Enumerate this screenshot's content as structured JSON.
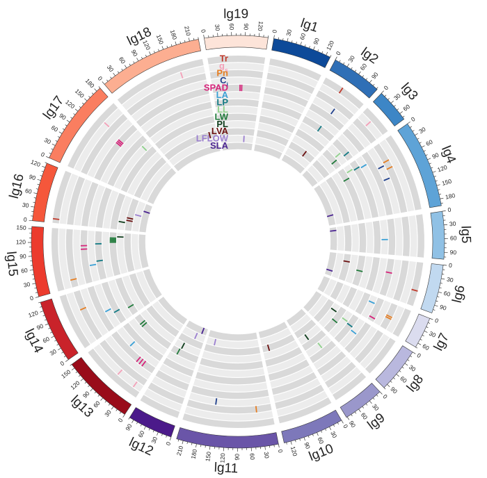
{
  "linkage_groups": [
    {
      "name": "lg1",
      "length": 130,
      "ticks": [
        0,
        30,
        60,
        90,
        120
      ],
      "color": "#0d4a99"
    },
    {
      "name": "lg2",
      "length": 112,
      "ticks": [
        0,
        30,
        60,
        90
      ],
      "color": "#2f6fb6"
    },
    {
      "name": "lg3",
      "length": 75,
      "ticks": [
        0,
        30,
        60
      ],
      "color": "#3d86c6"
    },
    {
      "name": "lg4",
      "length": 195,
      "ticks": [
        0,
        30,
        60,
        90,
        120,
        150,
        180
      ],
      "color": "#5ea3d7"
    },
    {
      "name": "lg5",
      "length": 105,
      "ticks": [
        0,
        30,
        60,
        90
      ],
      "color": "#90c1e5"
    },
    {
      "name": "lg6",
      "length": 108,
      "ticks": [
        0,
        30,
        60,
        90
      ],
      "color": "#c1d9f0"
    },
    {
      "name": "lg7",
      "length": 70,
      "ticks": [
        0,
        30,
        60
      ],
      "color": "#dbdcef"
    },
    {
      "name": "lg8",
      "length": 100,
      "ticks": [
        0,
        30,
        60,
        90
      ],
      "color": "#b9b8de"
    },
    {
      "name": "lg9",
      "length": 92,
      "ticks": [
        0,
        30,
        60,
        90
      ],
      "color": "#9a97cb"
    },
    {
      "name": "lg10",
      "length": 135,
      "ticks": [
        0,
        30,
        60,
        90,
        120
      ],
      "color": "#7d78ba"
    },
    {
      "name": "lg11",
      "length": 225,
      "ticks": [
        0,
        30,
        60,
        90,
        120,
        150,
        180,
        210
      ],
      "color": "#6a55a8"
    },
    {
      "name": "lg12",
      "length": 100,
      "ticks": [
        0,
        30,
        60,
        90
      ],
      "color": "#4b1a8a"
    },
    {
      "name": "lg13",
      "length": 160,
      "ticks": [
        0,
        30,
        60,
        90,
        120,
        150
      ],
      "color": "#990c1a"
    },
    {
      "name": "lg14",
      "length": 140,
      "ticks": [
        0,
        30,
        60,
        90,
        120
      ],
      "color": "#c9232a"
    },
    {
      "name": "lg15",
      "length": 155,
      "ticks": [
        0,
        30,
        60,
        90,
        120,
        150
      ],
      "color": "#ec3b2d"
    },
    {
      "name": "lg16",
      "length": 130,
      "ticks": [
        0,
        30,
        60,
        90,
        120
      ],
      "color": "#f5573b"
    },
    {
      "name": "lg17",
      "length": 190,
      "ticks": [
        0,
        30,
        60,
        90,
        120,
        150,
        180
      ],
      "color": "#fa7e60"
    },
    {
      "name": "lg18",
      "length": 230,
      "ticks": [
        0,
        30,
        60,
        90,
        120,
        150,
        180,
        210
      ],
      "color": "#fcae91"
    },
    {
      "name": "lg19",
      "length": 140,
      "ticks": [
        0,
        30,
        60,
        90,
        120
      ],
      "color": "#fde4d9"
    }
  ],
  "traits": [
    {
      "label": "Tr",
      "sub": "",
      "color": "#c0392b"
    },
    {
      "label": "g",
      "sub": "s",
      "color": "#f4a0b8"
    },
    {
      "label": "Pn",
      "sub": "",
      "color": "#e67e22"
    },
    {
      "label": "C",
      "sub": "i",
      "color": "#1f3f8c"
    },
    {
      "label": "SPAD",
      "sub": "",
      "color": "#d6247a"
    },
    {
      "label": "LA",
      "sub": "",
      "color": "#3aa0d6"
    },
    {
      "label": "LP",
      "sub": "",
      "color": "#137a84"
    },
    {
      "label": "LL",
      "sub": "",
      "color": "#8fd18b"
    },
    {
      "label": "LW",
      "sub": "",
      "color": "#1f7a3a"
    },
    {
      "label": "PL",
      "sub": "",
      "color": "#0f3d1c"
    },
    {
      "label": "LVA",
      "sub": "",
      "color": "#6b1010"
    },
    {
      "label": "LFLOW",
      "sub": "",
      "color": "#9b7fd0"
    },
    {
      "label": "SLA",
      "sub": "",
      "color": "#4b2591"
    }
  ],
  "qtl_marks": [
    {
      "lg": 2,
      "pos": 48,
      "trait": 0
    },
    {
      "lg": 2,
      "pos": 62,
      "trait": 3
    },
    {
      "lg": 2,
      "pos": 60,
      "trait": 6
    },
    {
      "lg": 2,
      "pos": 70,
      "trait": 10
    },
    {
      "lg": 3,
      "pos": 30,
      "trait": 1
    },
    {
      "lg": 3,
      "pos": 40,
      "trait": 7
    },
    {
      "lg": 3,
      "pos": 55,
      "trait": 6
    },
    {
      "lg": 3,
      "pos": 50,
      "trait": 8
    },
    {
      "lg": 4,
      "pos": 20,
      "trait": 7
    },
    {
      "lg": 4,
      "pos": 25,
      "trait": 6
    },
    {
      "lg": 4,
      "pos": 30,
      "trait": 5
    },
    {
      "lg": 4,
      "pos": 40,
      "trait": 8
    },
    {
      "lg": 4,
      "pos": 50,
      "trait": 2
    },
    {
      "lg": 4,
      "pos": 58,
      "trait": 3
    },
    {
      "lg": 4,
      "pos": 70,
      "trait": 2
    },
    {
      "lg": 4,
      "pos": 95,
      "trait": 3
    },
    {
      "lg": 4,
      "pos": 150,
      "trait": 12
    },
    {
      "lg": 5,
      "pos": 15,
      "trait": 12
    },
    {
      "lg": 5,
      "pos": 60,
      "trait": 5
    },
    {
      "lg": 6,
      "pos": 30,
      "trait": 10
    },
    {
      "lg": 6,
      "pos": 40,
      "trait": 4
    },
    {
      "lg": 6,
      "pos": 55,
      "trait": 8
    },
    {
      "lg": 6,
      "pos": 70,
      "trait": 0
    },
    {
      "lg": 6,
      "pos": 85,
      "trait": 12
    },
    {
      "lg": 7,
      "pos": 20,
      "trait": 5
    },
    {
      "lg": 7,
      "pos": 35,
      "trait": 2
    },
    {
      "lg": 7,
      "pos": 40,
      "trait": 2
    },
    {
      "lg": 7,
      "pos": 60,
      "trait": 4
    },
    {
      "lg": 8,
      "pos": 25,
      "trait": 9
    },
    {
      "lg": 8,
      "pos": 30,
      "trait": 7
    },
    {
      "lg": 8,
      "pos": 35,
      "trait": 6
    },
    {
      "lg": 8,
      "pos": 45,
      "trait": 5
    },
    {
      "lg": 8,
      "pos": 55,
      "trait": 8
    },
    {
      "lg": 9,
      "pos": 40,
      "trait": 7
    },
    {
      "lg": 9,
      "pos": 60,
      "trait": 9
    },
    {
      "lg": 10,
      "pos": 110,
      "trait": 10
    },
    {
      "lg": 11,
      "pos": 40,
      "trait": 2
    },
    {
      "lg": 11,
      "pos": 150,
      "trait": 3
    },
    {
      "lg": 11,
      "pos": 190,
      "trait": 11
    },
    {
      "lg": 12,
      "pos": 20,
      "trait": 12
    },
    {
      "lg": 12,
      "pos": 40,
      "trait": 11
    },
    {
      "lg": 12,
      "pos": 70,
      "trait": 9
    },
    {
      "lg": 12,
      "pos": 75,
      "trait": 8
    },
    {
      "lg": 13,
      "pos": 20,
      "trait": 1
    },
    {
      "lg": 13,
      "pos": 35,
      "trait": 4
    },
    {
      "lg": 13,
      "pos": 45,
      "trait": 4
    },
    {
      "lg": 13,
      "pos": 55,
      "trait": 4
    },
    {
      "lg": 13,
      "pos": 70,
      "trait": 1
    },
    {
      "lg": 13,
      "pos": 100,
      "trait": 5
    },
    {
      "lg": 13,
      "pos": 120,
      "trait": 8
    },
    {
      "lg": 13,
      "pos": 130,
      "trait": 8
    },
    {
      "lg": 14,
      "pos": 30,
      "trait": 8
    },
    {
      "lg": 14,
      "pos": 40,
      "trait": 6
    },
    {
      "lg": 14,
      "pos": 55,
      "trait": 5
    },
    {
      "lg": 14,
      "pos": 90,
      "trait": 2
    },
    {
      "lg": 15,
      "pos": 20,
      "trait": 2
    },
    {
      "lg": 15,
      "pos": 50,
      "trait": 5
    },
    {
      "lg": 15,
      "pos": 60,
      "trait": 6
    },
    {
      "lg": 15,
      "pos": 100,
      "trait": 4
    },
    {
      "lg": 15,
      "pos": 110,
      "trait": 4
    },
    {
      "lg": 15,
      "pos": 115,
      "trait": 6
    },
    {
      "lg": 15,
      "pos": 120,
      "trait": 8
    },
    {
      "lg": 15,
      "pos": 125,
      "trait": 8
    },
    {
      "lg": 15,
      "pos": 130,
      "trait": 8
    },
    {
      "lg": 15,
      "pos": 135,
      "trait": 8
    },
    {
      "lg": 15,
      "pos": 140,
      "trait": 9
    },
    {
      "lg": 16,
      "pos": 10,
      "trait": 0
    },
    {
      "lg": 16,
      "pos": 30,
      "trait": 9
    },
    {
      "lg": 16,
      "pos": 40,
      "trait": 10
    },
    {
      "lg": 16,
      "pos": 50,
      "trait": 10
    },
    {
      "lg": 16,
      "pos": 70,
      "trait": 11
    },
    {
      "lg": 16,
      "pos": 95,
      "trait": 12
    },
    {
      "lg": 17,
      "pos": 120,
      "trait": 4
    },
    {
      "lg": 17,
      "pos": 125,
      "trait": 4
    },
    {
      "lg": 17,
      "pos": 130,
      "trait": 4
    },
    {
      "lg": 17,
      "pos": 140,
      "trait": 1
    },
    {
      "lg": 17,
      "pos": 165,
      "trait": 7
    },
    {
      "lg": 18,
      "pos": 170,
      "trait": 1
    },
    {
      "lg": 18,
      "pos": 200,
      "trait": 10
    },
    {
      "lg": 19,
      "pos": 80,
      "trait": 4
    },
    {
      "lg": 19,
      "pos": 85,
      "trait": 4
    },
    {
      "lg": 19,
      "pos": 100,
      "trait": 11
    }
  ]
}
